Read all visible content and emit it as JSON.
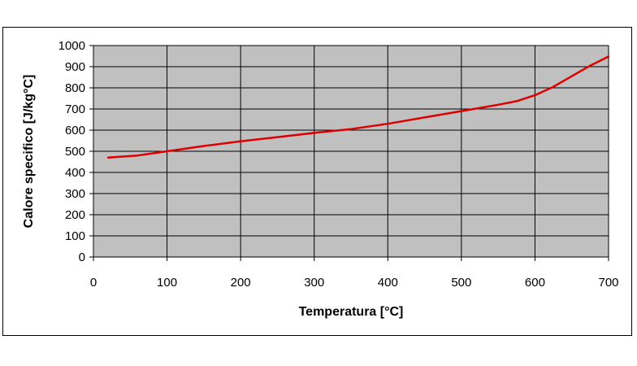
{
  "chart_data": {
    "type": "line",
    "title": "",
    "xlabel": "Temperatura [°C]",
    "ylabel": "Calore specifico [J/kg°C]",
    "xlim": [
      0,
      700
    ],
    "ylim": [
      0,
      1000
    ],
    "x_ticks": [
      0,
      100,
      200,
      300,
      400,
      500,
      600,
      700
    ],
    "y_ticks": [
      0,
      100,
      200,
      300,
      400,
      500,
      600,
      700,
      800,
      900,
      1000
    ],
    "grid": true,
    "legend": "none",
    "colors": {
      "plot_background": "#c0c0c0",
      "line": "#dd0000",
      "grid": "#000000"
    },
    "series": [
      {
        "x": [
          20,
          60,
          100,
          150,
          200,
          250,
          300,
          350,
          400,
          450,
          500,
          550,
          575,
          600,
          625,
          650,
          675,
          700
        ],
        "y": [
          470,
          480,
          500,
          525,
          547,
          567,
          587,
          605,
          630,
          660,
          690,
          720,
          737,
          765,
          805,
          855,
          905,
          948
        ]
      }
    ]
  }
}
